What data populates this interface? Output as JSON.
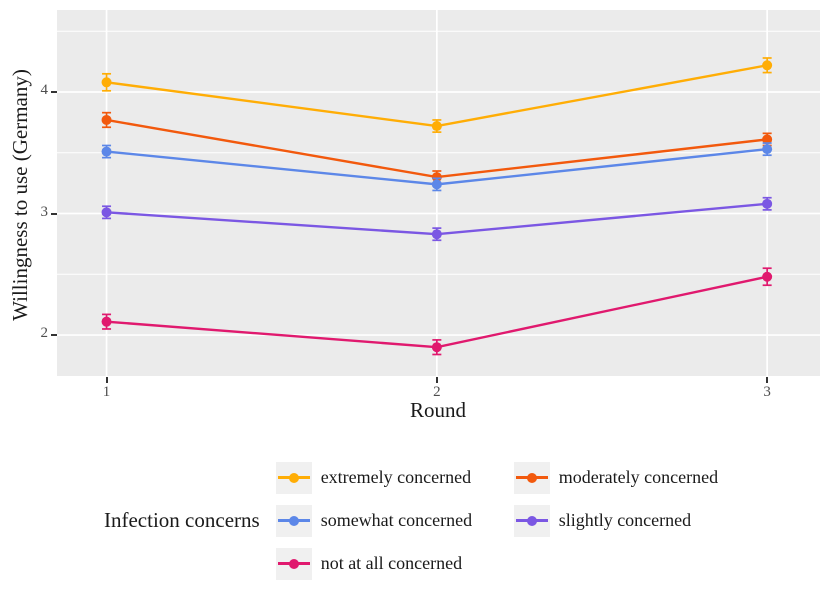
{
  "figure": {
    "y_axis_title": "Willingness to use (Germany)",
    "x_axis_title": "Round",
    "legend_title": "Infection concerns"
  },
  "colors": {
    "panel_bg": "#EBEBEB",
    "grid": "#FFFFFF",
    "tick_mark": "#333333",
    "tick_label": "#4D4D4D",
    "text": "#1A1A1A",
    "legend_key_bg": "#F0F0F0"
  },
  "chart_data": {
    "type": "line",
    "title": "",
    "xlabel": "Round",
    "ylabel": "Willingness to use (Germany)",
    "legend_title": "Infection concerns",
    "legend_position": "bottom",
    "grid": true,
    "error_bars": true,
    "x": [
      1,
      2,
      3
    ],
    "x_tick_labels": [
      "1",
      "2",
      "3"
    ],
    "xlim": [
      0.85,
      3.16
    ],
    "y_major_ticks": [
      2,
      3,
      4
    ],
    "y_minor_gridlines": [
      2.5,
      3.5,
      4.5
    ],
    "ylim": [
      1.663,
      4.675
    ],
    "series": [
      {
        "name": "extremely concerned",
        "color": "#FFAD05",
        "values": [
          4.08,
          3.72,
          4.22
        ],
        "errors": [
          0.07,
          0.05,
          0.06
        ]
      },
      {
        "name": "moderately concerned",
        "color": "#F2590D",
        "values": [
          3.77,
          3.3,
          3.61
        ],
        "errors": [
          0.06,
          0.05,
          0.05
        ]
      },
      {
        "name": "somewhat concerned",
        "color": "#5C87E8",
        "values": [
          3.51,
          3.24,
          3.53
        ],
        "errors": [
          0.05,
          0.05,
          0.05
        ]
      },
      {
        "name": "slightly concerned",
        "color": "#7B57E3",
        "values": [
          3.01,
          2.83,
          3.08
        ],
        "errors": [
          0.05,
          0.05,
          0.05
        ]
      },
      {
        "name": "not at all concerned",
        "color": "#E0196E",
        "values": [
          2.11,
          1.9,
          2.48
        ],
        "errors": [
          0.06,
          0.06,
          0.07
        ]
      }
    ]
  }
}
